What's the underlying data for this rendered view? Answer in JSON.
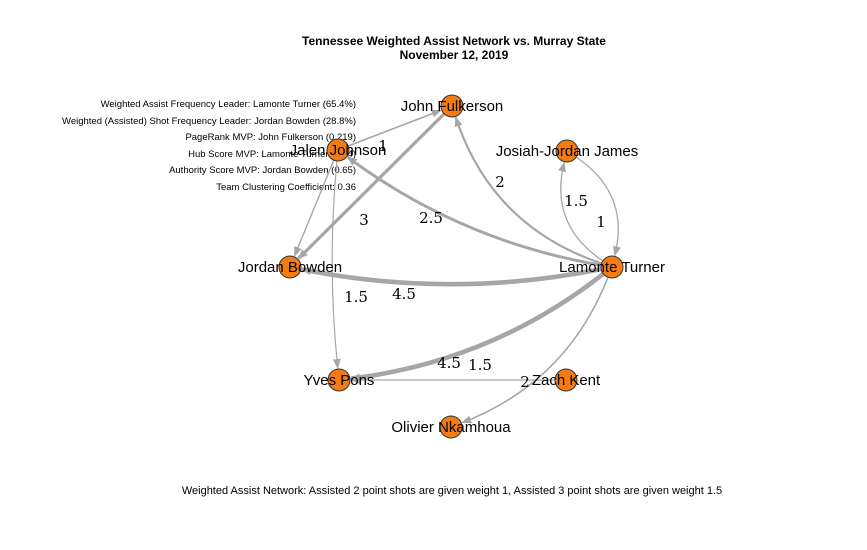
{
  "title": {
    "line1": "Tennessee Weighted Assist Network vs. Murray State",
    "line2": "November 12, 2019"
  },
  "stats": [
    "Weighted Assist Frequency Leader: Lamonte Turner (65.4%)",
    "Weighted (Assisted) Shot Frequency Leader: Jordan Bowden (28.8%)",
    "PageRank MVP: John Fulkerson (0.219)",
    "Hub Score MVP: Lamonte Turner (0.94)",
    "Authority Score MVP: Jordan Bowden (0.65)",
    "Team Clustering Coefficient: 0.36"
  ],
  "caption": "Weighted Assist Network: Assisted 2 point shots are given weight 1, Assisted 3 point shots are given weight 1.5",
  "colors": {
    "node_fill": "#F47C12",
    "node_stroke": "#333333",
    "edge": "#A6A6A6"
  },
  "network": {
    "nodes": [
      {
        "id": "fulkerson",
        "label": "John Fulkerson"
      },
      {
        "id": "johnson",
        "label": "Jalen Johnson"
      },
      {
        "id": "james",
        "label": "Josiah-Jordan James"
      },
      {
        "id": "bowden",
        "label": "Jordan Bowden"
      },
      {
        "id": "turner",
        "label": "Lamonte Turner"
      },
      {
        "id": "pons",
        "label": "Yves Pons"
      },
      {
        "id": "kent",
        "label": "Zach Kent"
      },
      {
        "id": "nkamhoua",
        "label": "Olivier Nkamhoua"
      }
    ],
    "edges": [
      {
        "from": "johnson",
        "to": "fulkerson",
        "weight": "1"
      },
      {
        "from": "turner",
        "to": "johnson",
        "weight": "2.5"
      },
      {
        "from": "turner",
        "to": "fulkerson",
        "weight": "2"
      },
      {
        "from": "fulkerson",
        "to": "bowden",
        "weight": "3"
      },
      {
        "from": "johnson",
        "to": "bowden",
        "weight": ""
      },
      {
        "from": "johnson",
        "to": "pons",
        "weight": "1.5"
      },
      {
        "from": "turner",
        "to": "bowden",
        "weight": "4.5"
      },
      {
        "from": "turner",
        "to": "pons",
        "weight": "4.5"
      },
      {
        "from": "kent",
        "to": "pons",
        "weight": "1.5"
      },
      {
        "from": "turner",
        "to": "james",
        "weight": "1.5"
      },
      {
        "from": "james",
        "to": "turner",
        "weight": "1"
      },
      {
        "from": "turner",
        "to": "nkamhoua",
        "weight": "2"
      }
    ]
  }
}
